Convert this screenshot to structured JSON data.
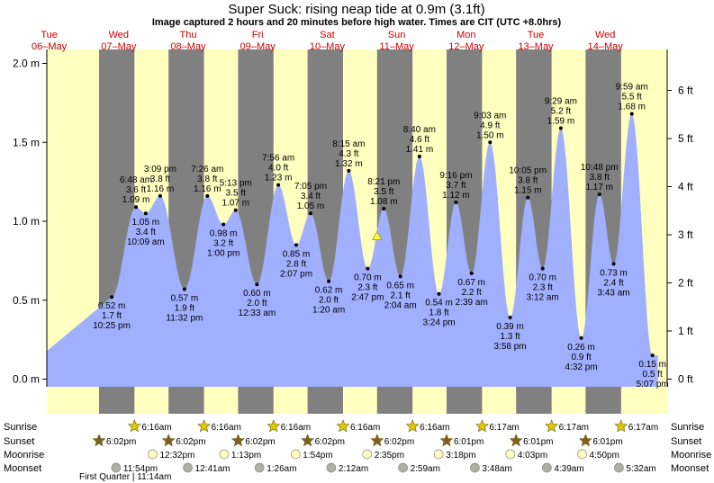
{
  "header": {
    "title": "Super Suck: rising  neap tide at 0.9m (3.1ft)",
    "subtitle": "Image captured 2 hours and 20 minutes before high water. Times are CIT (UTC +8.0hrs)"
  },
  "colors": {
    "day": "#ffffc0",
    "night": "#808080",
    "tide": "#a0b0ff",
    "sun": "#e0c800",
    "sunset": "#806020",
    "moon": "#ffffc0",
    "moonset": "#b0b0a0",
    "day_header": "#cc0000"
  },
  "chart_data": {
    "type": "area",
    "title": "Super Suck: rising  neap tide at 0.9m (3.1ft)",
    "y_left": {
      "unit": "m",
      "range": [
        -0.2,
        2.1
      ],
      "ticks": [
        "2.0 m",
        "1.5 m",
        "1.0 m",
        "0.5 m",
        "0.0 m"
      ]
    },
    "y_right": {
      "unit": "ft",
      "ticks": [
        "6 ft",
        "5 ft",
        "4 ft",
        "3 ft",
        "2 ft",
        "1 ft",
        "0 ft"
      ]
    },
    "days": [
      {
        "dow": "Tue",
        "date": "06–May"
      },
      {
        "dow": "Wed",
        "date": "07–May"
      },
      {
        "dow": "Thu",
        "date": "08–May"
      },
      {
        "dow": "Fri",
        "date": "09–May"
      },
      {
        "dow": "Sat",
        "date": "10–May"
      },
      {
        "dow": "Sun",
        "date": "11–May"
      },
      {
        "dow": "Mon",
        "date": "12–May"
      },
      {
        "dow": "Tue",
        "date": "13–May"
      },
      {
        "dow": "Wed",
        "date": "14–May"
      }
    ],
    "extremes": [
      {
        "day": 0,
        "time": "10:25 pm",
        "m": 0.52,
        "ft": "1.7 ft",
        "kind": "low"
      },
      {
        "day": 1,
        "time": "6:48 am",
        "m": 1.09,
        "ft": "3.6 ft",
        "kind": "high"
      },
      {
        "day": 1,
        "time": "10:09 am",
        "m": 1.05,
        "ft": "3.4 ft",
        "kind": "low"
      },
      {
        "day": 1,
        "time": "3:09 pm",
        "m": 1.16,
        "ft": "3.8 ft",
        "kind": "high"
      },
      {
        "day": 1,
        "time": "11:32 pm",
        "m": 0.57,
        "ft": "1.9 ft",
        "kind": "low"
      },
      {
        "day": 2,
        "time": "7:26 am",
        "m": 1.16,
        "ft": "3.8 ft",
        "kind": "high"
      },
      {
        "day": 2,
        "time": "1:00 pm",
        "m": 0.98,
        "ft": "3.2 ft",
        "kind": "low"
      },
      {
        "day": 2,
        "time": "5:13 pm",
        "m": 1.07,
        "ft": "3.5 ft",
        "kind": "high"
      },
      {
        "day": 3,
        "time": "12:33 am",
        "m": 0.6,
        "ft": "2.0 ft",
        "kind": "low"
      },
      {
        "day": 3,
        "time": "7:56 am",
        "m": 1.23,
        "ft": "4.0 ft",
        "kind": "high"
      },
      {
        "day": 3,
        "time": "2:07 pm",
        "m": 0.85,
        "ft": "2.8 ft",
        "kind": "low"
      },
      {
        "day": 3,
        "time": "7:05 pm",
        "m": 1.05,
        "ft": "3.4 ft",
        "kind": "high"
      },
      {
        "day": 4,
        "time": "1:20 am",
        "m": 0.62,
        "ft": "2.0 ft",
        "kind": "low"
      },
      {
        "day": 4,
        "time": "8:15 am",
        "m": 1.32,
        "ft": "4.3 ft",
        "kind": "high"
      },
      {
        "day": 4,
        "time": "2:47 pm",
        "m": 0.7,
        "ft": "2.3 ft",
        "kind": "low"
      },
      {
        "day": 4,
        "time": "8:21 pm",
        "m": 1.08,
        "ft": "3.5 ft",
        "kind": "high"
      },
      {
        "day": 5,
        "time": "2:04 am",
        "m": 0.65,
        "ft": "2.1 ft",
        "kind": "low"
      },
      {
        "day": 5,
        "time": "8:40 am",
        "m": 1.41,
        "ft": "4.6 ft",
        "kind": "high"
      },
      {
        "day": 5,
        "time": "3:24 pm",
        "m": 0.54,
        "ft": "1.8 ft",
        "kind": "low"
      },
      {
        "day": 5,
        "time": "9:16 pm",
        "m": 1.12,
        "ft": "3.7 ft",
        "kind": "high"
      },
      {
        "day": 6,
        "time": "2:39 am",
        "m": 0.67,
        "ft": "2.2 ft",
        "kind": "low"
      },
      {
        "day": 6,
        "time": "9:03 am",
        "m": 1.5,
        "ft": "4.9 ft",
        "kind": "high"
      },
      {
        "day": 6,
        "time": "3:58 pm",
        "m": 0.39,
        "ft": "1.3 ft",
        "kind": "low"
      },
      {
        "day": 6,
        "time": "10:05 pm",
        "m": 1.15,
        "ft": "3.8 ft",
        "kind": "high"
      },
      {
        "day": 7,
        "time": "3:12 am",
        "m": 0.7,
        "ft": "2.3 ft",
        "kind": "low"
      },
      {
        "day": 7,
        "time": "9:29 am",
        "m": 1.59,
        "ft": "5.2 ft",
        "kind": "high"
      },
      {
        "day": 7,
        "time": "4:32 pm",
        "m": 0.26,
        "ft": "0.9 ft",
        "kind": "low"
      },
      {
        "day": 7,
        "time": "10:48 pm",
        "m": 1.17,
        "ft": "3.8 ft",
        "kind": "high"
      },
      {
        "day": 8,
        "time": "3:43 am",
        "m": 0.73,
        "ft": "2.4 ft",
        "kind": "low"
      },
      {
        "day": 8,
        "time": "9:59 am",
        "m": 1.68,
        "ft": "5.5 ft",
        "kind": "high"
      },
      {
        "day": 8,
        "time": "5:07 pm",
        "m": 0.15,
        "ft": "0.5 ft",
        "kind": "low"
      }
    ],
    "current": {
      "day": 4,
      "time": "6:01 pm",
      "m": 0.9,
      "ft": "3.1 ft"
    }
  },
  "astro": {
    "row_labels": {
      "sunrise": "Sunrise",
      "sunset": "Sunset",
      "moonrise": "Moonrise",
      "moonset": "Moonset"
    },
    "sunrise": [
      {
        "day": 1,
        "time": "6:16am"
      },
      {
        "day": 2,
        "time": "6:16am"
      },
      {
        "day": 3,
        "time": "6:16am"
      },
      {
        "day": 4,
        "time": "6:16am"
      },
      {
        "day": 5,
        "time": "6:16am"
      },
      {
        "day": 6,
        "time": "6:17am"
      },
      {
        "day": 7,
        "time": "6:17am"
      },
      {
        "day": 8,
        "time": "6:17am"
      }
    ],
    "sunset": [
      {
        "day": 0,
        "time": "6:02pm"
      },
      {
        "day": 1,
        "time": "6:02pm"
      },
      {
        "day": 2,
        "time": "6:02pm"
      },
      {
        "day": 3,
        "time": "6:02pm"
      },
      {
        "day": 4,
        "time": "6:02pm"
      },
      {
        "day": 5,
        "time": "6:01pm"
      },
      {
        "day": 6,
        "time": "6:01pm"
      },
      {
        "day": 7,
        "time": "6:01pm"
      }
    ],
    "moonrise": [
      {
        "day": 1,
        "time": "12:32pm"
      },
      {
        "day": 2,
        "time": "1:13pm"
      },
      {
        "day": 3,
        "time": "1:54pm"
      },
      {
        "day": 4,
        "time": "2:35pm"
      },
      {
        "day": 5,
        "time": "3:18pm"
      },
      {
        "day": 6,
        "time": "4:03pm"
      },
      {
        "day": 7,
        "time": "4:50pm"
      }
    ],
    "moonset": [
      {
        "day": 0,
        "time": "11:54pm"
      },
      {
        "day": 2,
        "time": "12:41am"
      },
      {
        "day": 3,
        "time": "1:26am"
      },
      {
        "day": 4,
        "time": "2:12am"
      },
      {
        "day": 5,
        "time": "2:59am"
      },
      {
        "day": 6,
        "time": "3:48am"
      },
      {
        "day": 7,
        "time": "4:39am"
      },
      {
        "day": 8,
        "time": "5:32am"
      }
    ],
    "moon_phase_note": "First Quarter | 11:14am"
  }
}
